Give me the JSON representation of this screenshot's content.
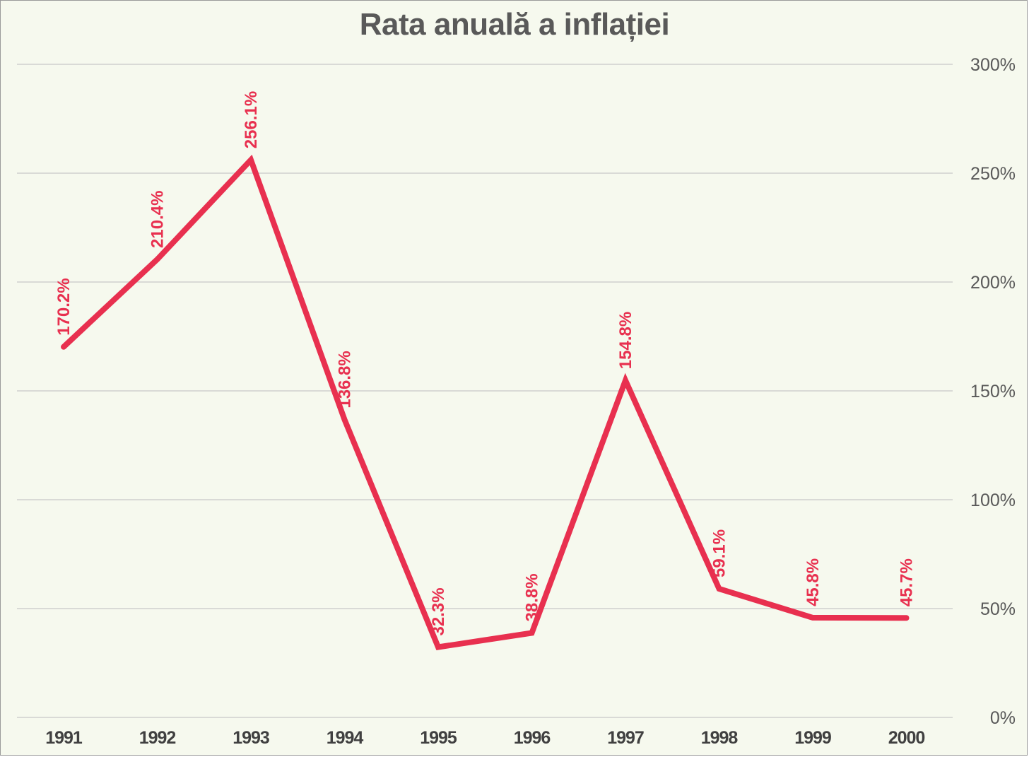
{
  "chart_data": {
    "type": "line",
    "title": "Rata anuală a inflației",
    "xlabel": "",
    "ylabel": "",
    "categories": [
      "1991",
      "1992",
      "1993",
      "1994",
      "1995",
      "1996",
      "1997",
      "1998",
      "1999",
      "2000"
    ],
    "series": [
      {
        "values": [
          170.2,
          210.4,
          256.1,
          136.8,
          32.3,
          38.8,
          154.8,
          59.1,
          45.8,
          45.7
        ],
        "data_labels": [
          "170.2%",
          "210.4%",
          "256.1%",
          "136.8%",
          "32.3%",
          "38.8%",
          "154.8%",
          "59.1%",
          "45.8%",
          "45.7%"
        ],
        "color": "#e8304f"
      }
    ],
    "ylim": [
      0,
      300
    ],
    "y_ticks": [
      "0%",
      "50%",
      "100%",
      "150%",
      "200%",
      "250%",
      "300%"
    ],
    "y_axis_side": "right",
    "grid": true,
    "legend": "none",
    "colors": {
      "background": "#f6f9ee",
      "gridline": "#c8c8c8",
      "line": "#e8304f",
      "title": "#595959"
    }
  }
}
